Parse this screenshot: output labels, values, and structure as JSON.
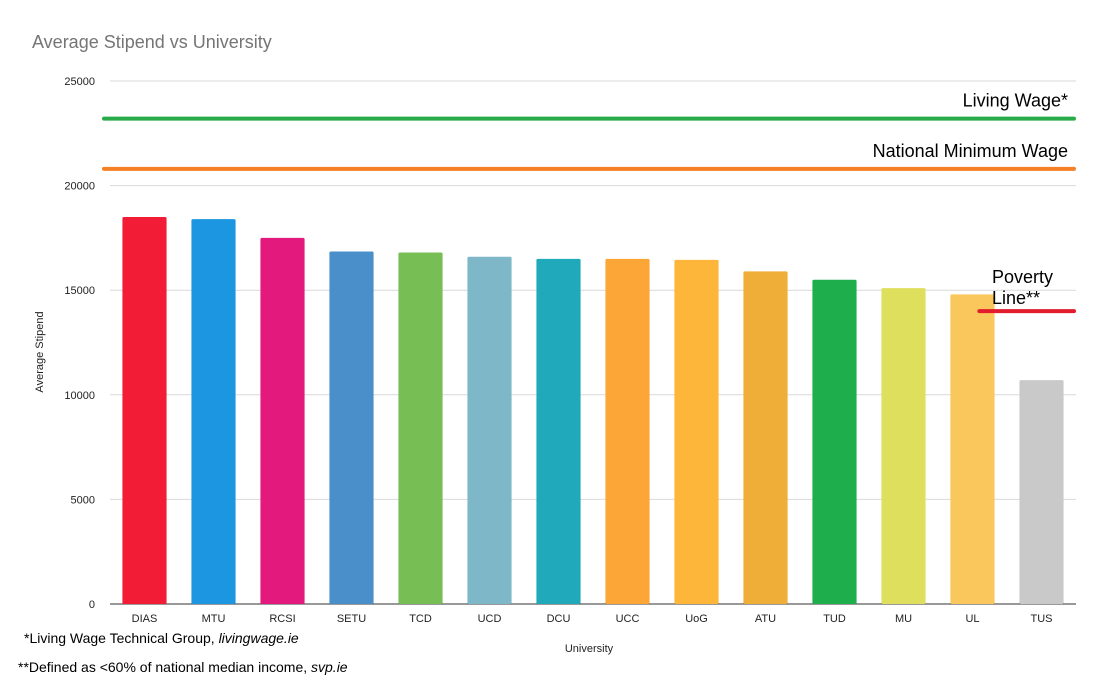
{
  "chart_data": {
    "type": "bar",
    "title": "Average Stipend vs University",
    "xlabel": "University",
    "ylabel": "Average Stipend",
    "ylim": [
      0,
      25000
    ],
    "yticks": [
      0,
      5000,
      10000,
      15000,
      20000,
      25000
    ],
    "grid": true,
    "categories": [
      "DIAS",
      "MTU",
      "RCSI",
      "SETU",
      "TCD",
      "UCD",
      "DCU",
      "UCC",
      "UoG",
      "ATU",
      "TUD",
      "MU",
      "UL",
      "TUS"
    ],
    "values": [
      18500,
      18400,
      17500,
      16850,
      16800,
      16600,
      16500,
      16500,
      16450,
      15900,
      15500,
      15100,
      14800,
      10700
    ],
    "colors": [
      "#f21c37",
      "#1c96e0",
      "#e4197d",
      "#4a8fca",
      "#77bf55",
      "#7eb7c7",
      "#20a9bb",
      "#fca637",
      "#fdb53a",
      "#eeae37",
      "#1eaf4c",
      "#dfdf5e",
      "#fac75c",
      "#c9c9c9"
    ],
    "reference_lines": [
      {
        "label": "Living Wage*",
        "value": 23200,
        "color": "#2aab4a",
        "x_from_category": 0
      },
      {
        "label": "National Minimum Wage",
        "value": 20800,
        "color": "#f58025",
        "x_from_category": 0
      },
      {
        "label_lines": [
          "Poverty",
          "Line**"
        ],
        "value": 14000,
        "color": "#e21b2d",
        "x_from_category": 12.6
      }
    ]
  },
  "footnotes": {
    "living_wage": {
      "text": "*Living Wage Technical Group, ",
      "source": "livingwage.ie"
    },
    "poverty": {
      "text": "**Defined as <60% of national median income, ",
      "source": "svp.ie"
    }
  }
}
